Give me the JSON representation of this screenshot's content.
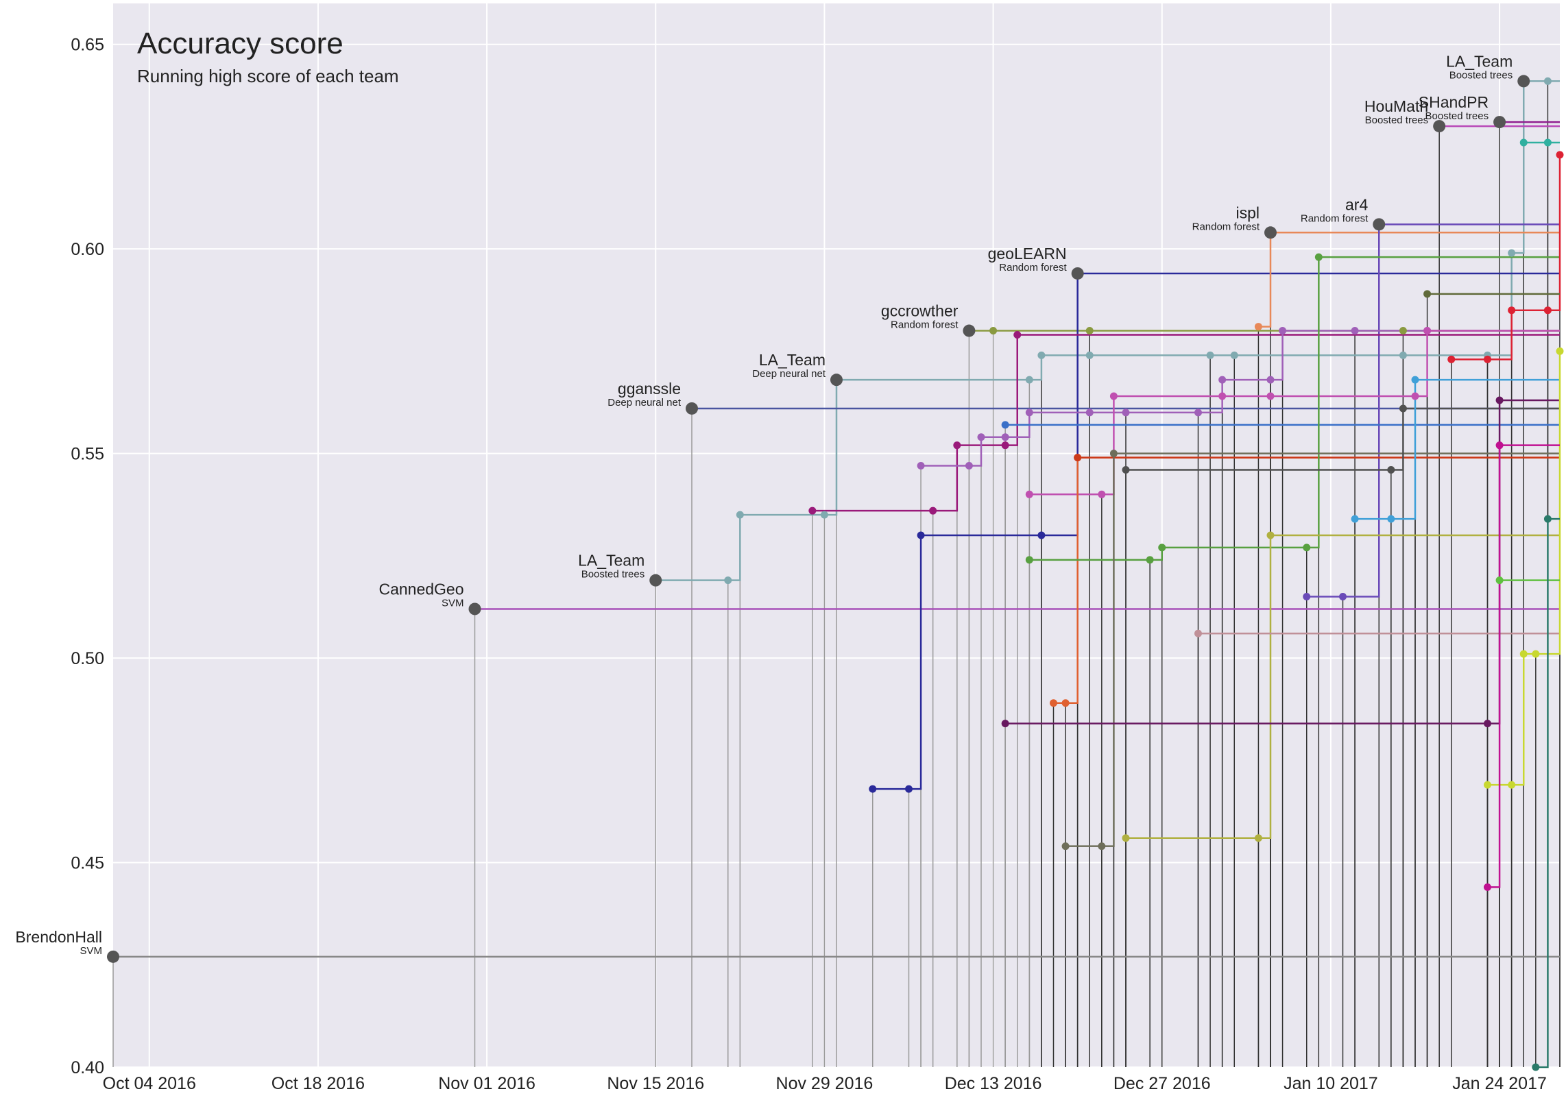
{
  "chart_data": {
    "type": "line",
    "title": "Accuracy score",
    "subtitle": "Running high score of each team",
    "xlabel": "",
    "ylabel": "",
    "x_ticks": [
      "Oct 04 2016",
      "Oct 18 2016",
      "Nov 01 2016",
      "Nov 15 2016",
      "Nov 29 2016",
      "Dec 13 2016",
      "Dec 27 2016",
      "Jan 10 2017",
      "Jan 24 2017"
    ],
    "y_ticks": [
      "0.40",
      "0.45",
      "0.50",
      "0.55",
      "0.60",
      "0.65"
    ],
    "xlim": [
      "2016-10-01",
      "2017-01-29"
    ],
    "ylim": [
      0.4,
      0.66
    ],
    "grid": true,
    "annotations": [
      {
        "team": "BrendonHall",
        "method": "SVM",
        "date": "2016-10-01",
        "score": 0.427
      },
      {
        "team": "CannedGeo",
        "method": "SVM",
        "date": "2016-10-31",
        "score": 0.512
      },
      {
        "team": "LA_Team",
        "method": "Boosted trees",
        "date": "2016-11-15",
        "score": 0.519
      },
      {
        "team": "gganssle",
        "method": "Deep neural net",
        "date": "2016-11-18",
        "score": 0.561
      },
      {
        "team": "LA_Team",
        "method": "Deep neural net",
        "date": "2016-11-30",
        "score": 0.568
      },
      {
        "team": "gccrowther",
        "method": "Random forest",
        "date": "2016-12-11",
        "score": 0.58
      },
      {
        "team": "geoLEARN",
        "method": "Random forest",
        "date": "2016-12-20",
        "score": 0.594
      },
      {
        "team": "ispl",
        "method": "Random forest",
        "date": "2017-01-05",
        "score": 0.604
      },
      {
        "team": "ar4",
        "method": "Random forest",
        "date": "2017-01-14",
        "score": 0.606
      },
      {
        "team": "HouMath",
        "method": "Boosted trees",
        "date": "2017-01-19",
        "score": 0.63
      },
      {
        "team": "SHandPR",
        "method": "Boosted trees",
        "date": "2017-01-24",
        "score": 0.631
      },
      {
        "team": "LA_Team",
        "method": "Boosted trees",
        "date": "2017-01-26",
        "score": 0.641
      }
    ],
    "series": [
      {
        "color": "#888888",
        "points": [
          [
            "2016-10-01",
            0.427
          ]
        ]
      },
      {
        "color": "#a850b8",
        "points": [
          [
            "2016-10-31",
            0.512
          ]
        ]
      },
      {
        "color": "#80aab0",
        "points": [
          [
            "2016-11-15",
            0.519
          ],
          [
            "2016-11-21",
            0.519
          ],
          [
            "2016-11-22",
            0.535
          ],
          [
            "2016-11-29",
            0.535
          ],
          [
            "2016-11-30",
            0.568
          ],
          [
            "2016-12-16",
            0.568
          ],
          [
            "2016-12-17",
            0.574
          ],
          [
            "2016-12-21",
            0.574
          ],
          [
            "2016-12-31",
            0.574
          ],
          [
            "2017-01-02",
            0.574
          ],
          [
            "2017-01-16",
            0.574
          ],
          [
            "2017-01-23",
            0.574
          ],
          [
            "2017-01-25",
            0.599
          ],
          [
            "2017-01-26",
            0.641
          ],
          [
            "2017-01-28",
            0.641
          ],
          [
            "2017-01-29",
            0.641
          ]
        ]
      },
      {
        "color": "#4a55a0",
        "points": [
          [
            "2016-11-18",
            0.561
          ],
          [
            "2017-01-29",
            0.561
          ]
        ]
      },
      {
        "color": "#8a9a40",
        "points": [
          [
            "2016-12-11",
            0.58
          ],
          [
            "2016-12-13",
            0.58
          ],
          [
            "2016-12-21",
            0.58
          ],
          [
            "2017-01-16",
            0.58
          ],
          [
            "2017-01-29",
            0.58
          ]
        ]
      },
      {
        "color": "#2a2a9a",
        "points": [
          [
            "2016-12-03",
            0.468
          ],
          [
            "2016-12-06",
            0.468
          ],
          [
            "2016-12-07",
            0.53
          ],
          [
            "2016-12-17",
            0.53
          ],
          [
            "2016-12-20",
            0.594
          ],
          [
            "2017-01-29",
            0.594
          ]
        ]
      },
      {
        "color": "#e88858",
        "points": [
          [
            "2017-01-04",
            0.581
          ],
          [
            "2017-01-05",
            0.604
          ],
          [
            "2017-01-29",
            0.604
          ]
        ]
      },
      {
        "color": "#6a4ab8",
        "points": [
          [
            "2017-01-08",
            0.515
          ],
          [
            "2017-01-11",
            0.515
          ],
          [
            "2017-01-14",
            0.606
          ],
          [
            "2017-01-29",
            0.606
          ]
        ]
      },
      {
        "color": "#b848b8",
        "points": [
          [
            "2017-01-19",
            0.63
          ],
          [
            "2017-01-29",
            0.63
          ]
        ]
      },
      {
        "color": "#902090",
        "points": [
          [
            "2017-01-24",
            0.631
          ],
          [
            "2017-01-29",
            0.631
          ]
        ]
      },
      {
        "color": "#9a1a7a",
        "points": [
          [
            "2016-11-28",
            0.536
          ],
          [
            "2016-12-08",
            0.536
          ],
          [
            "2016-12-10",
            0.552
          ],
          [
            "2016-12-14",
            0.552
          ],
          [
            "2016-12-15",
            0.579
          ],
          [
            "2017-01-29",
            0.579
          ]
        ]
      },
      {
        "color": "#a060b8",
        "points": [
          [
            "2016-12-07",
            0.547
          ],
          [
            "2016-12-11",
            0.547
          ],
          [
            "2016-12-12",
            0.554
          ],
          [
            "2016-12-14",
            0.554
          ],
          [
            "2016-12-16",
            0.56
          ],
          [
            "2016-12-21",
            0.56
          ],
          [
            "2016-12-24",
            0.56
          ],
          [
            "2016-12-30",
            0.56
          ],
          [
            "2017-01-01",
            0.568
          ],
          [
            "2017-01-05",
            0.568
          ],
          [
            "2017-01-06",
            0.58
          ],
          [
            "2017-01-12",
            0.58
          ],
          [
            "2017-01-18",
            0.58
          ],
          [
            "2017-01-29",
            0.58
          ]
        ]
      },
      {
        "color": "#c050b0",
        "points": [
          [
            "2016-12-16",
            0.54
          ],
          [
            "2016-12-22",
            0.54
          ],
          [
            "2016-12-23",
            0.564
          ],
          [
            "2017-01-01",
            0.564
          ],
          [
            "2017-01-05",
            0.564
          ],
          [
            "2017-01-17",
            0.564
          ],
          [
            "2017-01-18",
            0.58
          ]
        ]
      },
      {
        "color": "#3a70c8",
        "points": [
          [
            "2016-12-14",
            0.557
          ],
          [
            "2017-01-29",
            0.557
          ]
        ]
      },
      {
        "color": "#e06030",
        "points": [
          [
            "2016-12-18",
            0.489
          ],
          [
            "2016-12-19",
            0.489
          ],
          [
            "2016-12-20",
            0.549
          ],
          [
            "2017-01-29",
            0.549
          ]
        ]
      },
      {
        "color": "#cc3a1a",
        "points": [
          [
            "2016-12-20",
            0.549
          ],
          [
            "2017-01-29",
            0.549
          ]
        ]
      },
      {
        "color": "#58a040",
        "points": [
          [
            "2016-12-16",
            0.524
          ],
          [
            "2016-12-26",
            0.524
          ],
          [
            "2016-12-27",
            0.527
          ],
          [
            "2017-01-08",
            0.527
          ],
          [
            "2017-01-09",
            0.598
          ],
          [
            "2017-01-29",
            0.598
          ]
        ]
      },
      {
        "color": "#6e6e5a",
        "points": [
          [
            "2016-12-19",
            0.454
          ],
          [
            "2016-12-22",
            0.454
          ],
          [
            "2016-12-23",
            0.55
          ],
          [
            "2017-01-29",
            0.55
          ]
        ]
      },
      {
        "color": "#505050",
        "points": [
          [
            "2016-12-24",
            0.546
          ],
          [
            "2017-01-15",
            0.546
          ],
          [
            "2017-01-16",
            0.561
          ],
          [
            "2017-01-29",
            0.561
          ]
        ]
      },
      {
        "color": "#b0b040",
        "points": [
          [
            "2016-12-24",
            0.456
          ],
          [
            "2017-01-04",
            0.456
          ],
          [
            "2017-01-05",
            0.53
          ],
          [
            "2017-01-29",
            0.53
          ]
        ]
      },
      {
        "color": "#c09098",
        "points": [
          [
            "2016-12-30",
            0.506
          ],
          [
            "2017-01-29",
            0.506
          ]
        ]
      },
      {
        "color": "#681860",
        "points": [
          [
            "2016-12-14",
            0.484
          ],
          [
            "2017-01-23",
            0.484
          ],
          [
            "2017-01-24",
            0.563
          ]
        ]
      },
      {
        "color": "#40a0d8",
        "points": [
          [
            "2017-01-12",
            0.534
          ],
          [
            "2017-01-15",
            0.534
          ],
          [
            "2017-01-17",
            0.568
          ],
          [
            "2017-01-29",
            0.568
          ]
        ]
      },
      {
        "color": "#dd2233",
        "points": [
          [
            "2017-01-20",
            0.573
          ],
          [
            "2017-01-23",
            0.573
          ],
          [
            "2017-01-25",
            0.585
          ],
          [
            "2017-01-28",
            0.585
          ],
          [
            "2017-01-29",
            0.623
          ]
        ]
      },
      {
        "color": "#30b0a0",
        "points": [
          [
            "2017-01-26",
            0.626
          ],
          [
            "2017-01-28",
            0.626
          ]
        ]
      },
      {
        "color": "#c8d830",
        "points": [
          [
            "2017-01-23",
            0.469
          ],
          [
            "2017-01-25",
            0.469
          ],
          [
            "2017-01-26",
            0.501
          ],
          [
            "2017-01-27",
            0.501
          ],
          [
            "2017-01-29",
            0.575
          ]
        ]
      },
      {
        "color": "#c01090",
        "points": [
          [
            "2017-01-23",
            0.444
          ],
          [
            "2017-01-24",
            0.552
          ]
        ]
      },
      {
        "color": "#60c040",
        "points": [
          [
            "2017-01-24",
            0.519
          ],
          [
            "2017-01-29",
            0.519
          ]
        ]
      },
      {
        "color": "#606a3a",
        "points": [
          [
            "2017-01-18",
            0.589
          ],
          [
            "2017-01-29",
            0.589
          ]
        ]
      },
      {
        "color": "#2a7a6a",
        "points": [
          [
            "2017-01-27",
            0.4
          ],
          [
            "2017-01-28",
            0.534
          ],
          [
            "2017-01-29",
            0.534
          ]
        ]
      }
    ]
  }
}
